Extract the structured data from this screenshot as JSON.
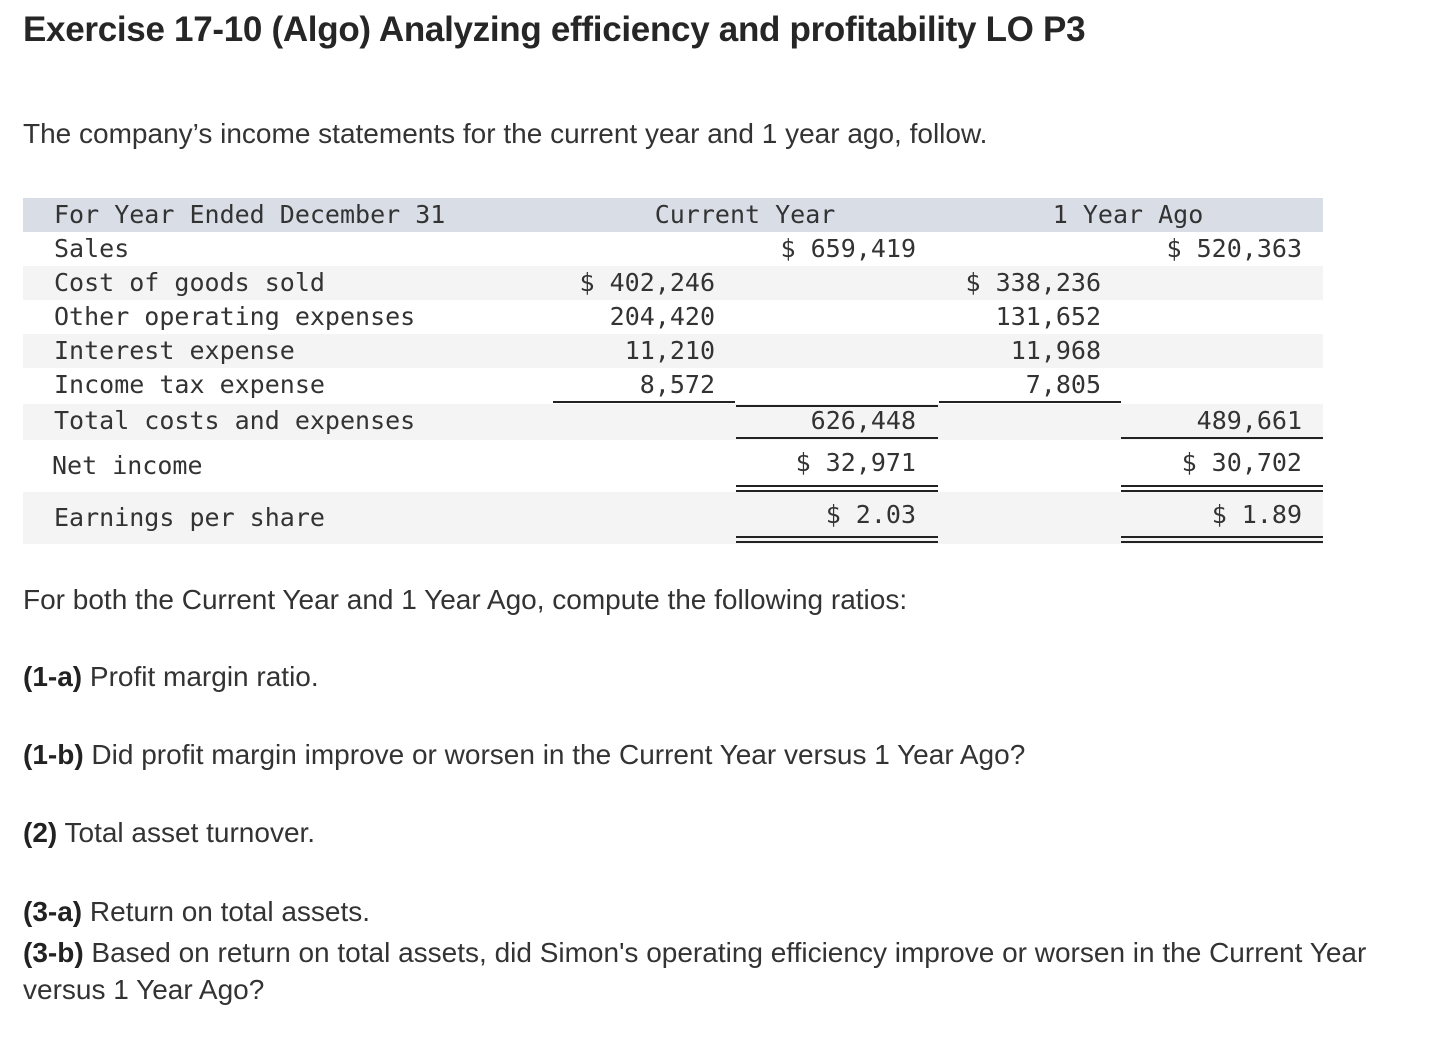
{
  "title": "Exercise 17-10 (Algo) Analyzing efficiency and profitability LO P3",
  "intro": "The company’s income statements for the current year and 1 year ago, follow.",
  "statement": {
    "header": {
      "label": "For Year Ended December 31",
      "current": "Current Year",
      "prior": "1 Year Ago"
    },
    "sales": {
      "label": "Sales",
      "current": "$ 659,419",
      "prior": "$ 520,363"
    },
    "cogs": {
      "label": "Cost of goods sold",
      "current": "$ 402,246",
      "prior": "$ 338,236"
    },
    "other_opex": {
      "label": "Other operating expenses",
      "current": "204,420",
      "prior": "131,652"
    },
    "interest": {
      "label": "Interest expense",
      "current": "11,210",
      "prior": "11,968"
    },
    "tax": {
      "label": "Income tax expense",
      "current": "8,572",
      "prior": "7,805"
    },
    "total_costs": {
      "label": "Total costs and expenses",
      "current": "626,448",
      "prior": "489,661"
    },
    "net_income": {
      "label": "Net income",
      "current": "$ 32,971",
      "prior": "$ 30,702"
    },
    "eps": {
      "label": "Earnings per share",
      "current": "$ 2.03",
      "prior": "$ 1.89"
    }
  },
  "instructions": "For both the Current Year and 1 Year Ago, compute the following ratios:",
  "questions": {
    "q1a": {
      "tag": "(1-a)",
      "text": " Profit margin ratio."
    },
    "q1b": {
      "tag": "(1-b)",
      "text": " Did profit margin improve or worsen in the Current Year versus 1 Year Ago?"
    },
    "q2": {
      "tag": "(2)",
      "text": " Total asset turnover."
    },
    "q3a": {
      "tag": "(3-a)",
      "text": " Return on total assets."
    },
    "q3b": {
      "tag": "(3-b)",
      "text": " Based on return on total assets, did Simon's operating efficiency improve or worsen in the Current Year versus 1 Year Ago?"
    }
  }
}
